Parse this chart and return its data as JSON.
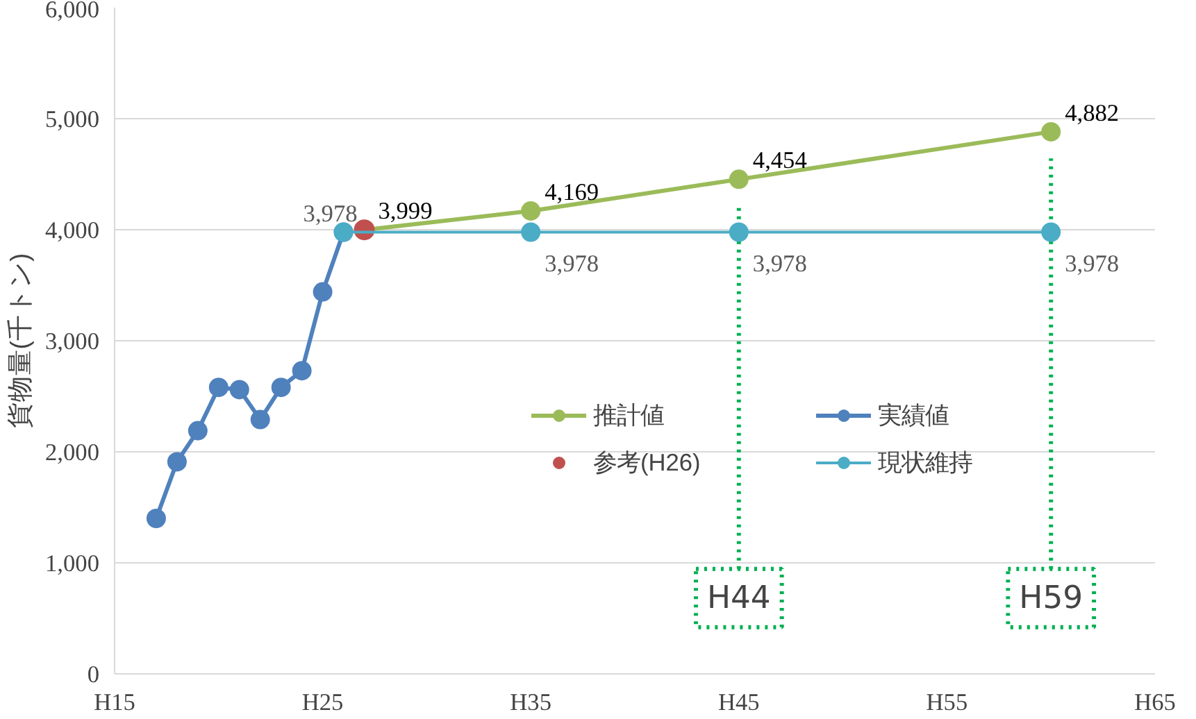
{
  "chart_data": {
    "type": "line",
    "ylabel": "貨物量(千トン)",
    "categories": [
      "H15",
      null,
      null,
      null,
      null,
      null,
      null,
      null,
      null,
      null,
      "H25",
      null,
      null,
      null,
      null,
      null,
      null,
      null,
      null,
      null,
      "H35",
      null,
      null,
      null,
      null,
      null,
      null,
      null,
      null,
      null,
      "H45",
      null,
      null,
      null,
      null,
      null,
      null,
      null,
      null,
      null,
      "H55",
      null,
      null,
      null,
      null,
      null,
      null,
      null,
      null,
      null,
      "H65"
    ],
    "ylim": [
      0,
      6000
    ],
    "yticks": [
      {
        "value": 0,
        "label": "0"
      },
      {
        "value": 1000,
        "label": "1,000"
      },
      {
        "value": 2000,
        "label": "2,000"
      },
      {
        "value": 3000,
        "label": "3,000"
      },
      {
        "value": 4000,
        "label": "4,000"
      },
      {
        "value": 5000,
        "label": "5,000"
      },
      {
        "value": 6000,
        "label": "6,000"
      }
    ],
    "grid": "y",
    "legend": "right",
    "marker": "circle",
    "series": [
      {
        "name": "推計値",
        "color": "#9bbb59",
        "values": [
          null,
          null,
          null,
          null,
          null,
          null,
          null,
          null,
          null,
          null,
          null,
          null,
          3999,
          null,
          null,
          null,
          null,
          null,
          null,
          null,
          4169,
          null,
          null,
          null,
          null,
          null,
          null,
          null,
          null,
          null,
          4454,
          null,
          null,
          null,
          null,
          null,
          null,
          null,
          null,
          null,
          null,
          null,
          null,
          null,
          null,
          4882,
          null,
          null,
          null,
          null,
          null
        ],
        "value_labels": [
          null,
          null,
          null,
          null,
          null,
          null,
          null,
          null,
          null,
          null,
          null,
          null,
          null,
          null,
          null,
          null,
          null,
          null,
          null,
          null,
          "4,169",
          null,
          null,
          null,
          null,
          null,
          null,
          null,
          null,
          null,
          "4,454",
          null,
          null,
          null,
          null,
          null,
          null,
          null,
          null,
          null,
          null,
          null,
          null,
          null,
          null,
          "4,882",
          null,
          null,
          null,
          null,
          null
        ]
      },
      {
        "name": "実績値",
        "color": "#4f81bd",
        "values": [
          null,
          null,
          1400,
          1910,
          2190,
          2580,
          2560,
          2290,
          2580,
          2730,
          3440,
          3978,
          null,
          null,
          null,
          null,
          null,
          null,
          null,
          null,
          null,
          null,
          null,
          null,
          null,
          null,
          null,
          null,
          null,
          null,
          null,
          null,
          null,
          null,
          null,
          null,
          null,
          null,
          null,
          null,
          null,
          null,
          null,
          null,
          null,
          null,
          null,
          null,
          null,
          null,
          null
        ],
        "value_labels": [
          null,
          null,
          null,
          null,
          null,
          null,
          null,
          null,
          null,
          null,
          null,
          "3,978",
          null,
          null,
          null,
          null,
          null,
          null,
          null,
          null,
          null,
          null,
          null,
          null,
          null,
          null,
          null,
          null,
          null,
          null,
          null,
          null,
          null,
          null,
          null,
          null,
          null,
          null,
          null,
          null,
          null,
          null,
          null,
          null,
          null,
          null,
          null,
          null,
          null,
          null,
          null
        ]
      },
      {
        "name": "参考(H26)",
        "type": "scatter",
        "color": "#c0504d",
        "values": [
          null,
          null,
          null,
          null,
          null,
          null,
          null,
          null,
          null,
          null,
          null,
          null,
          3999,
          null,
          null,
          null,
          null,
          null,
          null,
          null,
          null,
          null,
          null,
          null,
          null,
          null,
          null,
          null,
          null,
          null,
          null,
          null,
          null,
          null,
          null,
          null,
          null,
          null,
          null,
          null,
          null,
          null,
          null,
          null,
          null,
          null,
          null,
          null,
          null,
          null,
          null
        ],
        "value_labels": [
          null,
          null,
          null,
          null,
          null,
          null,
          null,
          null,
          null,
          null,
          null,
          null,
          "3,999",
          null,
          null,
          null,
          null,
          null,
          null,
          null,
          null,
          null,
          null,
          null,
          null,
          null,
          null,
          null,
          null,
          null,
          null,
          null,
          null,
          null,
          null,
          null,
          null,
          null,
          null,
          null,
          null,
          null,
          null,
          null,
          null,
          null,
          null,
          null,
          null,
          null,
          null
        ]
      },
      {
        "name": "現状維持",
        "color": "#4bacc6",
        "values": [
          null,
          null,
          null,
          null,
          null,
          null,
          null,
          null,
          null,
          null,
          null,
          3978,
          null,
          null,
          null,
          null,
          null,
          null,
          null,
          null,
          3978,
          null,
          null,
          null,
          null,
          null,
          null,
          null,
          null,
          null,
          3978,
          null,
          null,
          null,
          null,
          null,
          null,
          null,
          null,
          null,
          null,
          null,
          null,
          null,
          null,
          3978,
          null,
          null,
          null,
          null,
          null
        ],
        "value_labels": [
          null,
          null,
          null,
          null,
          null,
          null,
          null,
          null,
          null,
          null,
          null,
          null,
          null,
          null,
          null,
          null,
          null,
          null,
          null,
          null,
          "3,978",
          null,
          null,
          null,
          null,
          null,
          null,
          null,
          null,
          null,
          "3,978",
          null,
          null,
          null,
          null,
          null,
          null,
          null,
          null,
          null,
          null,
          null,
          null,
          null,
          null,
          "3,978",
          null,
          null,
          null,
          null,
          null
        ]
      }
    ],
    "annotations": [
      "H44",
      "H59"
    ]
  }
}
